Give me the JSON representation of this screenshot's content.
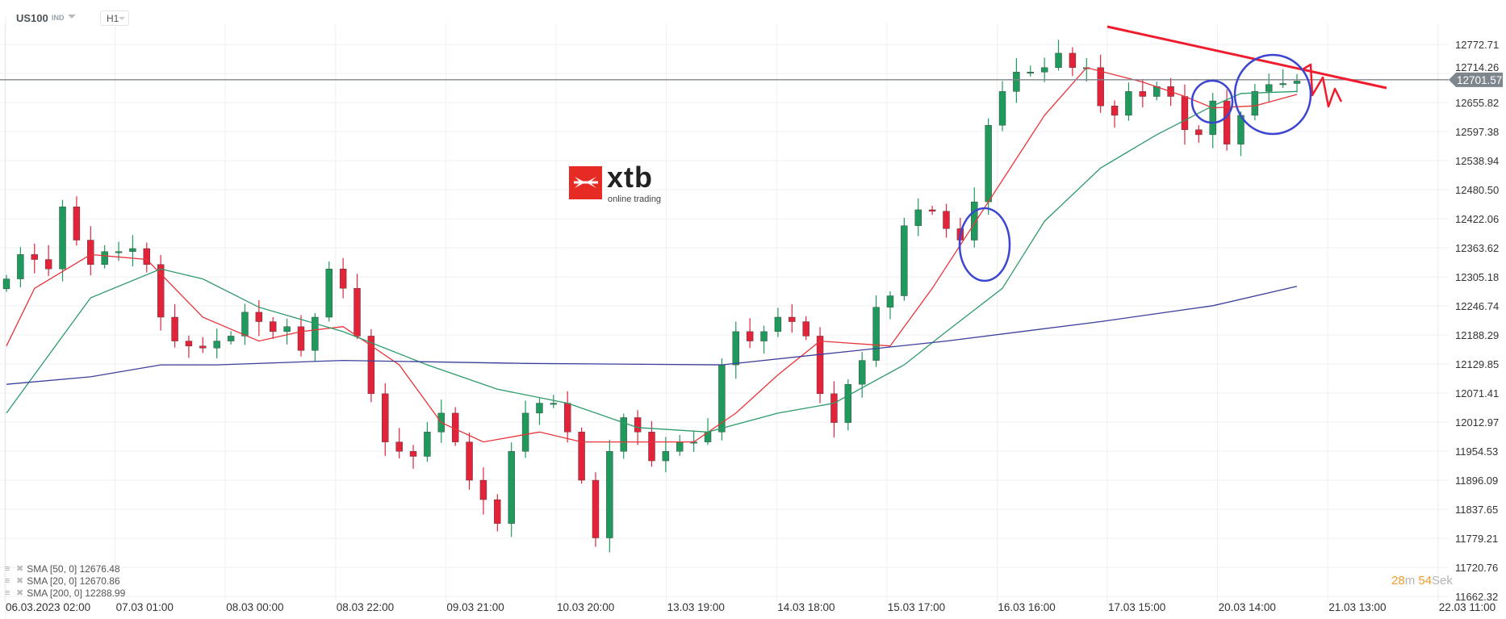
{
  "header": {
    "symbol": "US100",
    "instrument_type": "IND",
    "timeframe": "H1"
  },
  "logo": {
    "brand": "xtb",
    "tagline": "online trading"
  },
  "indicators": [
    {
      "label": "SMA [50,  0] 12676.48",
      "color": "#2e9a6a"
    },
    {
      "label": "SMA [20,  0] 12670.86",
      "color": "#e8343a"
    },
    {
      "label": "SMA [200,  0] 12288.99",
      "color": "#3a3f9a"
    }
  ],
  "countdown": {
    "minutes": "28",
    "minutes_unit": "m",
    "seconds": "54",
    "seconds_unit": "Sek"
  },
  "colors": {
    "up": "#1f9a5c",
    "down": "#e3233a",
    "price_tag": "#7d868c",
    "drawing_line": "#ee1c2c",
    "drawing_circle": "#3b45d0"
  },
  "chart_data": {
    "type": "candlestick",
    "current_price": "12701.57",
    "y_ticks": [
      "12772.71",
      "12714.26",
      "12655.82",
      "12597.38",
      "12538.94",
      "12480.50",
      "12422.06",
      "12363.62",
      "12305.18",
      "12246.74",
      "12188.29",
      "12129.85",
      "12071.41",
      "12012.97",
      "11954.53",
      "11896.09",
      "11837.65",
      "11779.21",
      "11720.76",
      "11662.32"
    ],
    "ylim": [
      11662.32,
      12772.71
    ],
    "x_ticks": [
      "06.03.2023  02:00",
      "07.03  01:00",
      "08.03  00:00",
      "08.03  22:00",
      "09.03  21:00",
      "10.03  20:00",
      "13.03  19:00",
      "14.03  18:00",
      "15.03  17:00",
      "16.03  16:00",
      "17.03  15:00",
      "20.03  14:00",
      "21.03  13:00",
      "22.03  11:00"
    ],
    "grid": true,
    "closes": [
      12301,
      12350,
      12340,
      12321,
      12446,
      12379,
      12330,
      12356,
      12356,
      12362,
      12330,
      12224,
      12176,
      12166,
      12162,
      12176,
      12186,
      12234,
      12215,
      12195,
      12205,
      12157,
      12224,
      12321,
      12282,
      12186,
      12070,
      11973,
      11954,
      11944,
      11993,
      12031,
      11973,
      11896,
      11857,
      11809,
      11954,
      12031,
      12051,
      12051,
      11993,
      11896,
      11780,
      11954,
      12022,
      11993,
      11935,
      11954,
      11973,
      11973,
      11993,
      12128,
      12195,
      12176,
      12195,
      12224,
      12215,
      12186,
      12070,
      12012,
      12089,
      12137,
      12244,
      12267,
      12408,
      12440,
      12437,
      12402,
      12379,
      12456,
      12610,
      12678,
      12717,
      12717,
      12726,
      12755,
      12726,
      12726,
      12649,
      12630,
      12678,
      12668,
      12688,
      12668,
      12601,
      12591,
      12659,
      12572,
      12630,
      12678,
      12692,
      12694,
      12699
    ],
    "series": [
      {
        "name": "SMA [20,  0]",
        "color": "#e8343a",
        "points": [
          [
            0,
            12166
          ],
          [
            2,
            12282
          ],
          [
            6,
            12350
          ],
          [
            10,
            12340
          ],
          [
            14,
            12224
          ],
          [
            18,
            12176
          ],
          [
            21,
            12195
          ],
          [
            24,
            12205
          ],
          [
            28,
            12128
          ],
          [
            31,
            12012
          ],
          [
            34,
            11973
          ],
          [
            38,
            11993
          ],
          [
            41,
            11973
          ],
          [
            46,
            11973
          ],
          [
            49,
            11973
          ],
          [
            52,
            12031
          ],
          [
            55,
            12108
          ],
          [
            58,
            12176
          ],
          [
            63,
            12166
          ],
          [
            66,
            12282
          ],
          [
            70,
            12456
          ],
          [
            74,
            12630
          ],
          [
            77,
            12726
          ],
          [
            81,
            12697
          ],
          [
            84,
            12668
          ],
          [
            86,
            12645
          ],
          [
            89,
            12649
          ],
          [
            92,
            12672
          ]
        ]
      },
      {
        "name": "SMA [50,  0]",
        "color": "#2e9a6a",
        "points": [
          [
            0,
            12031
          ],
          [
            3,
            12147
          ],
          [
            6,
            12263
          ],
          [
            11,
            12321
          ],
          [
            14,
            12301
          ],
          [
            18,
            12244
          ],
          [
            24,
            12195
          ],
          [
            30,
            12128
          ],
          [
            35,
            12079
          ],
          [
            40,
            12051
          ],
          [
            45,
            12002
          ],
          [
            50,
            11993
          ],
          [
            55,
            12031
          ],
          [
            59,
            12051
          ],
          [
            64,
            12128
          ],
          [
            67,
            12195
          ],
          [
            71,
            12282
          ],
          [
            74,
            12417
          ],
          [
            78,
            12524
          ],
          [
            82,
            12591
          ],
          [
            86,
            12649
          ],
          [
            88,
            12674
          ],
          [
            92,
            12678
          ]
        ]
      },
      {
        "name": "SMA [200,  0]",
        "color": "#3a3f9a",
        "points": [
          [
            0,
            12089
          ],
          [
            6,
            12104
          ],
          [
            11,
            12128
          ],
          [
            15,
            12128
          ],
          [
            24,
            12137
          ],
          [
            37,
            12131
          ],
          [
            51,
            12128
          ],
          [
            60,
            12155
          ],
          [
            67,
            12176
          ],
          [
            78,
            12215
          ],
          [
            86,
            12247
          ],
          [
            92,
            12286
          ]
        ]
      }
    ]
  }
}
